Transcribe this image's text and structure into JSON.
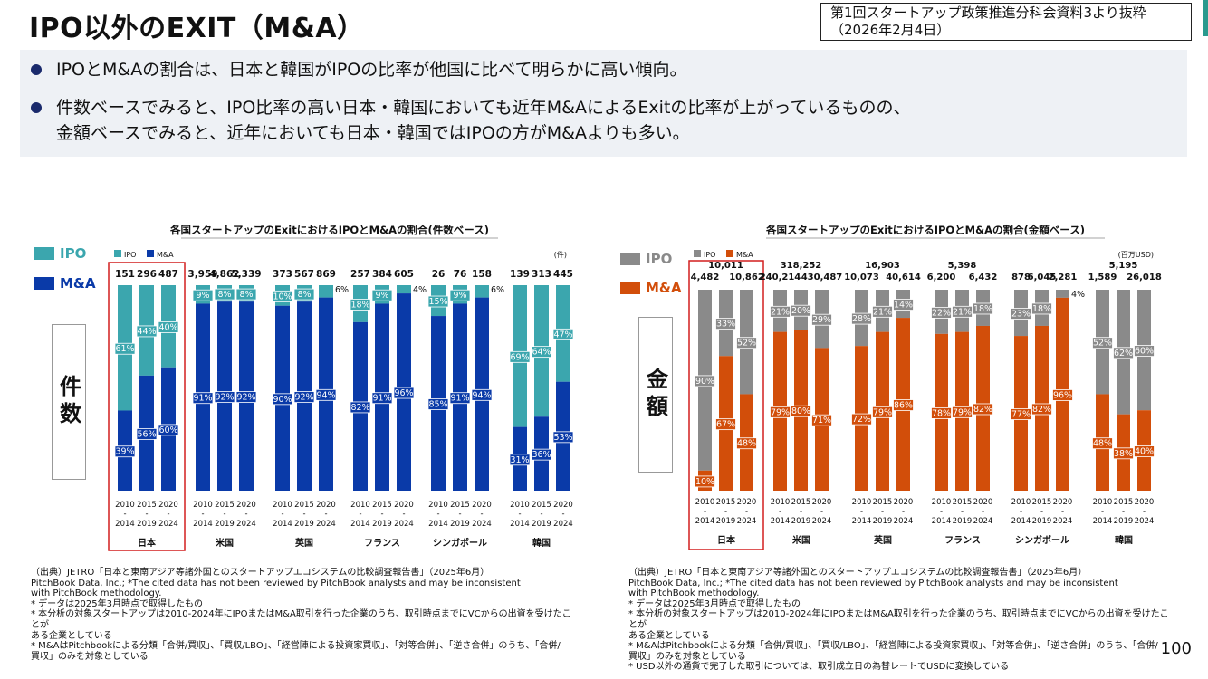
{
  "header": {
    "title": "IPO以外のEXIT（M&A）",
    "source_line1": "第1回スタートアップ政策推進分科会資料3より抜粋",
    "source_line2": "（2026年2月4日）"
  },
  "summary": {
    "bullet1": "IPOとM&Aの割合は、日本と韓国がIPOの比率が他国に比べて明らかに高い傾向。",
    "bullet2_line1": "件数ベースでみると、IPO比率の高い日本・韓国においても近年M&AによるExitの比率が上がっているものの、",
    "bullet2_line2": "金額ベースでみると、近年においても日本・韓国ではIPOの方がM&Aよりも多い。"
  },
  "side_legend": {
    "ipo": "IPO",
    "ma": "M&A"
  },
  "page_number": "100",
  "footnotes": [
    "（出典）JETRO「日本と東南アジア等諸外国とのスタートアップエコシステムの比較調査報告書」（2025年6月）",
    "PitchBook Data, Inc.; *The cited data has not been reviewed by PitchBook analysts and may be inconsistent",
    "with PitchBook methodology.",
    "* データは2025年3月時点で取得したもの",
    "* 本分析の対象スタートアップは2010-2024年にIPOまたはM&A取引を行った企業のうち、取引時点までにVCからの出資を受けたことが",
    "ある企業としている",
    "* M&AはPitchbookによる分類「合併/買収」、「買収/LBO」、「経営陣による投資家買収」、「対等合併」、「逆さ合併」のうち、「合併/",
    "買収」のみを対象としている"
  ],
  "footnote_extra": "* USD以外の通貨で完了した取引については、取引成立日の為替レートでUSDに変換している",
  "chart_data": [
    {
      "type": "bar",
      "stacked": "percent",
      "title": "各国スタートアップのExitにおけるIPOとM&Aの割合(件数ベース)",
      "side_label": "件数",
      "unit": "(件)",
      "legend": [
        "IPO",
        "M&A"
      ],
      "colors": {
        "ipo": "#3ba6ae",
        "ma": "#0a3aa8"
      },
      "highlight": "日本",
      "countries": [
        {
          "name": "日本",
          "periods": [
            {
              "top": "2010",
              "bottom": "2014",
              "total": "151",
              "ipo": 61,
              "ma": 39
            },
            {
              "top": "2015",
              "bottom": "2019",
              "total": "296",
              "ipo": 44,
              "ma": 56
            },
            {
              "top": "2020",
              "bottom": "2024",
              "total": "487",
              "ipo": 40,
              "ma": 60
            }
          ]
        },
        {
          "name": "米国",
          "periods": [
            {
              "top": "2010",
              "bottom": "2014",
              "total": "3,959",
              "ipo": 9,
              "ma": 91
            },
            {
              "top": "2015",
              "bottom": "2019",
              "total": "4,862",
              "ipo": 8,
              "ma": 92
            },
            {
              "top": "2020",
              "bottom": "2024",
              "total": "5,339",
              "ipo": 8,
              "ma": 92
            }
          ]
        },
        {
          "name": "英国",
          "periods": [
            {
              "top": "2010",
              "bottom": "2014",
              "total": "373",
              "ipo": 10,
              "ma": 90
            },
            {
              "top": "2015",
              "bottom": "2019",
              "total": "567",
              "ipo": 8,
              "ma": 92
            },
            {
              "top": "2020",
              "bottom": "2024",
              "total": "869",
              "ipo": 6,
              "ma": 94
            }
          ]
        },
        {
          "name": "フランス",
          "periods": [
            {
              "top": "2010",
              "bottom": "2014",
              "total": "257",
              "ipo": 18,
              "ma": 82
            },
            {
              "top": "2015",
              "bottom": "2019",
              "total": "384",
              "ipo": 9,
              "ma": 91
            },
            {
              "top": "2020",
              "bottom": "2024",
              "total": "605",
              "ipo": 4,
              "ma": 96
            }
          ]
        },
        {
          "name": "シンガポール",
          "periods": [
            {
              "top": "2010",
              "bottom": "2014",
              "total": "26",
              "ipo": 15,
              "ma": 85
            },
            {
              "top": "2015",
              "bottom": "2019",
              "total": "76",
              "ipo": 9,
              "ma": 91
            },
            {
              "top": "2020",
              "bottom": "2024",
              "total": "158",
              "ipo": 6,
              "ma": 94
            }
          ]
        },
        {
          "name": "韓国",
          "periods": [
            {
              "top": "2010",
              "bottom": "2014",
              "total": "139",
              "ipo": 69,
              "ma": 31
            },
            {
              "top": "2015",
              "bottom": "2019",
              "total": "313",
              "ipo": 64,
              "ma": 36
            },
            {
              "top": "2020",
              "bottom": "2024",
              "total": "445",
              "ipo": 47,
              "ma": 53
            }
          ]
        }
      ]
    },
    {
      "type": "bar",
      "stacked": "percent",
      "title": "各国スタートアップのExitにおけるIPOとM&Aの割合(金額ベース)",
      "side_label": "金額",
      "unit": "(百万USD)",
      "legend": [
        "IPO",
        "M&A"
      ],
      "colors": {
        "ipo": "#8a8a8a",
        "ma": "#d24e0a"
      },
      "highlight": "日本",
      "countries": [
        {
          "name": "日本",
          "periods": [
            {
              "top": "2010",
              "bottom": "2014",
              "total": "4,482",
              "ipo": 90,
              "ma": 10
            },
            {
              "top": "2015",
              "bottom": "2019",
              "total": "10,011",
              "ipo": 33,
              "ma": 67
            },
            {
              "top": "2020",
              "bottom": "2024",
              "total": "10,862",
              "ipo": 52,
              "ma": 48
            }
          ]
        },
        {
          "name": "米国",
          "periods": [
            {
              "top": "2010",
              "bottom": "2014",
              "total": "240,214",
              "ipo": 21,
              "ma": 79
            },
            {
              "top": "2015",
              "bottom": "2019",
              "total": "318,252",
              "ipo": 20,
              "ma": 80
            },
            {
              "top": "2020",
              "bottom": "2024",
              "total": "430,487",
              "ipo": 29,
              "ma": 71
            }
          ]
        },
        {
          "name": "英国",
          "periods": [
            {
              "top": "2010",
              "bottom": "2014",
              "total": "10,073",
              "ipo": 28,
              "ma": 72
            },
            {
              "top": "2015",
              "bottom": "2019",
              "total": "16,903",
              "ipo": 21,
              "ma": 79
            },
            {
              "top": "2020",
              "bottom": "2024",
              "total": "40,614",
              "ipo": 14,
              "ma": 86
            }
          ]
        },
        {
          "name": "フランス",
          "periods": [
            {
              "top": "2010",
              "bottom": "2014",
              "total": "6,200",
              "ipo": 22,
              "ma": 78
            },
            {
              "top": "2015",
              "bottom": "2019",
              "total": "5,398",
              "ipo": 21,
              "ma": 79
            },
            {
              "top": "2020",
              "bottom": "2024",
              "total": "6,432",
              "ipo": 18,
              "ma": 82
            }
          ]
        },
        {
          "name": "シンガポール",
          "periods": [
            {
              "top": "2010",
              "bottom": "2014",
              "total": "878",
              "ipo": 23,
              "ma": 77
            },
            {
              "top": "2015",
              "bottom": "2019",
              "total": "6,045",
              "ipo": 18,
              "ma": 82
            },
            {
              "top": "2020",
              "bottom": "2024",
              "total": "2,281",
              "ipo": 4,
              "ma": 96
            }
          ]
        },
        {
          "name": "韓国",
          "periods": [
            {
              "top": "2010",
              "bottom": "2014",
              "total": "1,589",
              "ipo": 52,
              "ma": 48
            },
            {
              "top": "2015",
              "bottom": "2019",
              "total": "5,195",
              "ipo": 62,
              "ma": 38
            },
            {
              "top": "2020",
              "bottom": "2024",
              "total": "26,018",
              "ipo": 60,
              "ma": 40
            }
          ]
        }
      ]
    }
  ]
}
